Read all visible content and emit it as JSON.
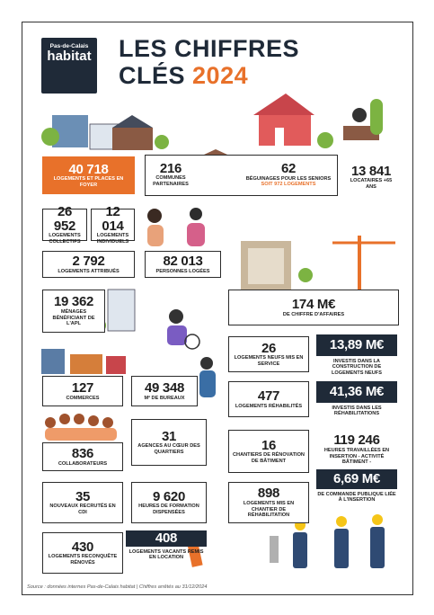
{
  "header": {
    "logo_top": "Pas-de-Calais",
    "logo_bottom": "habitat",
    "title_line1": "LES CHIFFRES",
    "title_line2": "CLÉS",
    "title_year": "2024"
  },
  "stats": [
    {
      "value": "40 718",
      "label": "LOGEMENTS ET PLACES EN FOYER"
    },
    {
      "value": "216",
      "label": "COMMUNES PARTENAIRES"
    },
    {
      "value": "62",
      "label": "BÉGUINAGES POUR LES SENIORS",
      "note": "SOIT 972 LOGEMENTS"
    },
    {
      "value": "13 841",
      "label": "LOCATAIRES +65 ANS"
    },
    {
      "value": "26 952",
      "label": "LOGEMENTS COLLECTIFS"
    },
    {
      "value": "12 014",
      "label": "LOGEMENTS INDIVIDUELS"
    },
    {
      "value": "2 792",
      "label": "LOGEMENTS ATTRIBUÉS"
    },
    {
      "value": "82 013",
      "label": "PERSONNES LOGÉES"
    },
    {
      "value": "19 362",
      "label": "MÉNAGES BÉNÉFICIANT DE L'APL"
    },
    {
      "value": "174 M€",
      "label": "DE CHIFFRE D'AFFAIRES"
    },
    {
      "value": "26",
      "label": "LOGEMENTS NEUFS MIS EN SERVICE"
    },
    {
      "value": "13,89 M€",
      "label": "INVESTIS DANS LA CONSTRUCTION DE LOGEMENTS NEUFS"
    },
    {
      "value": "127",
      "label": "COMMERCES"
    },
    {
      "value": "49 348",
      "label": "M² DE BUREAUX"
    },
    {
      "value": "477",
      "label": "LOGEMENTS RÉHABILITÉS"
    },
    {
      "value": "41,36 M€",
      "label": "INVESTIS DANS LES RÉHABILITATIONS"
    },
    {
      "value": "836",
      "label": "COLLABORATEURS"
    },
    {
      "value": "31",
      "label": "AGENCES AU CŒUR DES QUARTIERS"
    },
    {
      "value": "16",
      "label": "CHANTIERS DE RÉNOVATION DE BÂTIMENT"
    },
    {
      "value": "119 246",
      "label": "HEURES TRAVAILLÉES EN INSERTION - ACTIVITÉ BÂTIMENT -"
    },
    {
      "value": "6,69 M€",
      "label": "DE COMMANDE PUBLIQUE LIÉE À L'INSERTION"
    },
    {
      "value": "35",
      "label": "NOUVEAUX RECRUTÉS EN CDI"
    },
    {
      "value": "9 620",
      "label": "HEURES DE FORMATION DISPENSÉES"
    },
    {
      "value": "898",
      "label": "LOGEMENTS MIS EN CHANTIER DE RÉHABILITATION"
    },
    {
      "value": "430",
      "label": "LOGEMENTS RECONQUÊTE RÉNOVÉS"
    },
    {
      "value": "408",
      "label": "LOGEMENTS VACANTS REMIS EN LOCATION"
    }
  ],
  "footer": "Source : données internes Pas-de-Calais habitat | Chiffres arrêtés au 31/12/2024"
}
